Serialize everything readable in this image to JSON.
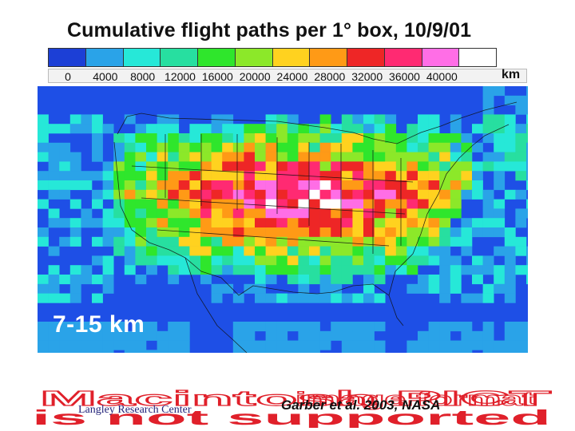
{
  "title": "Cumulative flight paths per 1° box, 10/9/01",
  "legend": {
    "colors": [
      "#1c3fd6",
      "#2aa3e8",
      "#26e8d8",
      "#27dfa0",
      "#2fe62c",
      "#8ce829",
      "#ffd21f",
      "#ff9a16",
      "#ee2626",
      "#ff2a72",
      "#ff6ee6",
      "#ffffff"
    ],
    "ticks": [
      "0",
      "4000",
      "8000",
      "12000",
      "16000",
      "20000",
      "24000",
      "28000",
      "32000",
      "36000",
      "40000"
    ],
    "unit": "km"
  },
  "map": {
    "altitude_label": "7-15 km",
    "background_color": "#1e4fe6",
    "intensity_colors": [
      "#1e4fe6",
      "#2aa3e8",
      "#26e8d8",
      "#27dfa0",
      "#2fe62c",
      "#8ce829",
      "#ffd21f",
      "#ff9a16",
      "#ee2626",
      "#ff2a72",
      "#ff6ee6",
      "#ffffff"
    ]
  },
  "watermark": {
    "line1": "Macintosh PICT",
    "line2": "image format",
    "line3": "is not supported",
    "color": "#e0202a"
  },
  "footer": {
    "center_label": "Langley Research Center",
    "citation": "Garber et al. 2003, NASA"
  }
}
